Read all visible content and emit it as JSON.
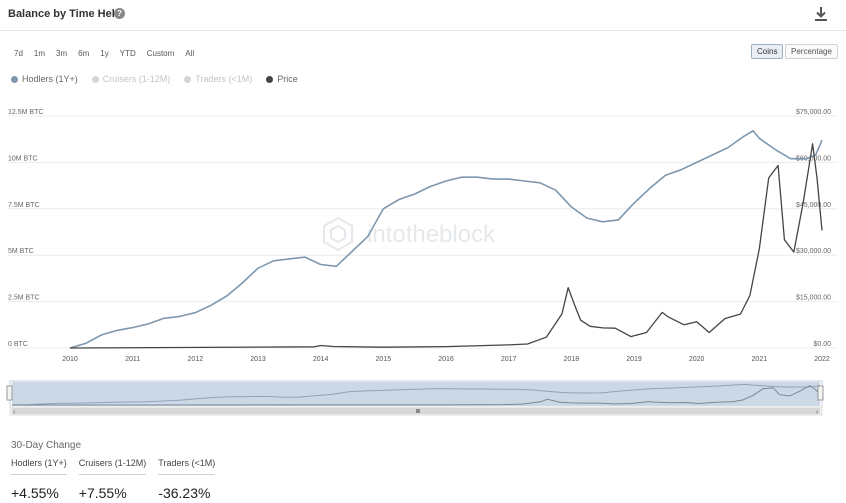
{
  "header": {
    "title": "Balance by Time Held",
    "help_icon": "help-icon",
    "download_icon": "download-icon"
  },
  "ranges": [
    "7d",
    "1m",
    "3m",
    "6m",
    "1y",
    "YTD",
    "Custom",
    "All"
  ],
  "modes": [
    {
      "label": "Coins",
      "active": true
    },
    {
      "label": "Percentage",
      "active": false
    }
  ],
  "legend": [
    {
      "label": "Hodlers (1Y+)",
      "color": "#7f97ad",
      "active": true
    },
    {
      "label": "Cruisers (1-12M)",
      "color": "#d6d6d6",
      "active": false
    },
    {
      "label": "Traders (<1M)",
      "color": "#d6d6d6",
      "active": false
    },
    {
      "label": "Price",
      "color": "#444444",
      "active": true
    }
  ],
  "watermark": "intotheblock",
  "chart_data": {
    "type": "line",
    "x_ticks": [
      "2010",
      "2011",
      "2012",
      "2013",
      "2014",
      "2015",
      "2016",
      "2017",
      "2018",
      "2019",
      "2020",
      "2021",
      "2022"
    ],
    "y_left_ticks": [
      "0 BTC",
      "2.5M BTC",
      "5M BTC",
      "7.5M BTC",
      "10M BTC",
      "12.5M BTC"
    ],
    "y_right_ticks": [
      "$0.00",
      "$15,000.00",
      "$30,000.00",
      "$45,000.00",
      "$60,000.00",
      "$75,000.00"
    ],
    "ylim_left": [
      0,
      12500000
    ],
    "ylim_right": [
      0,
      75000
    ],
    "grid": true,
    "series": [
      {
        "name": "Hodlers (1Y+)",
        "axis": "left",
        "color": "#7f97ad",
        "points": [
          [
            2010.0,
            0
          ],
          [
            2010.25,
            250000
          ],
          [
            2010.5,
            700000
          ],
          [
            2010.75,
            950000
          ],
          [
            2011.0,
            1100000
          ],
          [
            2011.25,
            1300000
          ],
          [
            2011.5,
            1600000
          ],
          [
            2011.75,
            1700000
          ],
          [
            2012.0,
            1900000
          ],
          [
            2012.25,
            2300000
          ],
          [
            2012.5,
            2800000
          ],
          [
            2012.75,
            3500000
          ],
          [
            2013.0,
            4300000
          ],
          [
            2013.25,
            4700000
          ],
          [
            2013.5,
            4800000
          ],
          [
            2013.75,
            4900000
          ],
          [
            2014.0,
            4500000
          ],
          [
            2014.25,
            4400000
          ],
          [
            2014.5,
            5200000
          ],
          [
            2014.75,
            6000000
          ],
          [
            2015.0,
            7500000
          ],
          [
            2015.25,
            8000000
          ],
          [
            2015.5,
            8300000
          ],
          [
            2015.75,
            8700000
          ],
          [
            2016.0,
            9000000
          ],
          [
            2016.25,
            9200000
          ],
          [
            2016.5,
            9200000
          ],
          [
            2016.75,
            9100000
          ],
          [
            2017.0,
            9100000
          ],
          [
            2017.25,
            9000000
          ],
          [
            2017.5,
            8900000
          ],
          [
            2017.75,
            8500000
          ],
          [
            2018.0,
            7600000
          ],
          [
            2018.25,
            7000000
          ],
          [
            2018.5,
            6800000
          ],
          [
            2018.75,
            6900000
          ],
          [
            2019.0,
            7800000
          ],
          [
            2019.25,
            8600000
          ],
          [
            2019.5,
            9300000
          ],
          [
            2019.75,
            9600000
          ],
          [
            2020.0,
            10000000
          ],
          [
            2020.25,
            10400000
          ],
          [
            2020.5,
            10800000
          ],
          [
            2020.75,
            11400000
          ],
          [
            2020.9,
            11700000
          ],
          [
            2021.0,
            11300000
          ],
          [
            2021.25,
            10700000
          ],
          [
            2021.5,
            10200000
          ],
          [
            2021.75,
            10200000
          ],
          [
            2021.9,
            10400000
          ],
          [
            2022.0,
            11200000
          ]
        ]
      },
      {
        "name": "Price",
        "axis": "right",
        "color": "#444444",
        "points": [
          [
            2010.0,
            0
          ],
          [
            2013.9,
            400
          ],
          [
            2014.0,
            800
          ],
          [
            2014.2,
            500
          ],
          [
            2015.0,
            250
          ],
          [
            2016.0,
            450
          ],
          [
            2017.0,
            1000
          ],
          [
            2017.3,
            1300
          ],
          [
            2017.6,
            3500
          ],
          [
            2017.85,
            11000
          ],
          [
            2017.95,
            19500
          ],
          [
            2018.05,
            14000
          ],
          [
            2018.15,
            9000
          ],
          [
            2018.3,
            7000
          ],
          [
            2018.5,
            6500
          ],
          [
            2018.7,
            6400
          ],
          [
            2018.95,
            3700
          ],
          [
            2019.2,
            5000
          ],
          [
            2019.45,
            11500
          ],
          [
            2019.55,
            10000
          ],
          [
            2019.8,
            7500
          ],
          [
            2020.0,
            8500
          ],
          [
            2020.2,
            5000
          ],
          [
            2020.45,
            9500
          ],
          [
            2020.7,
            11000
          ],
          [
            2020.85,
            17000
          ],
          [
            2021.0,
            32000
          ],
          [
            2021.15,
            55000
          ],
          [
            2021.3,
            59000
          ],
          [
            2021.4,
            35000
          ],
          [
            2021.55,
            31000
          ],
          [
            2021.7,
            47000
          ],
          [
            2021.85,
            66000
          ],
          [
            2021.92,
            55000
          ],
          [
            2022.0,
            38000
          ]
        ]
      }
    ]
  },
  "change": {
    "title": "30-Day Change",
    "items": [
      {
        "label": "Hodlers (1Y+)",
        "value": "+4.55%"
      },
      {
        "label": "Cruisers (1-12M)",
        "value": "+7.55%"
      },
      {
        "label": "Traders (<1M)",
        "value": "-36.23%"
      }
    ]
  }
}
